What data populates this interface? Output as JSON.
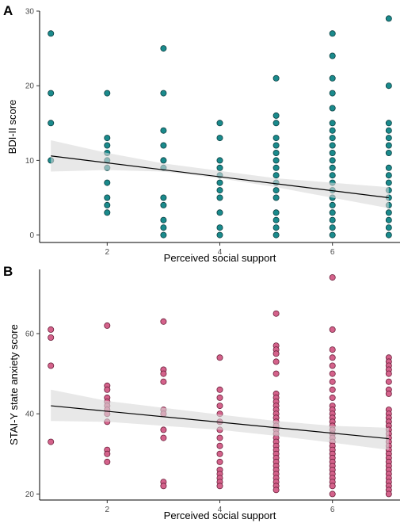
{
  "panels": [
    {
      "letter": "A",
      "chart_data": {
        "type": "scatter",
        "title": "",
        "xlabel": "Perceived social support",
        "ylabel": "BDI-II score",
        "xlim": [
          0.8,
          7.2
        ],
        "ylim": [
          -1,
          30
        ],
        "x_ticks": [
          2,
          4,
          6
        ],
        "y_ticks": [
          0,
          10,
          20,
          30
        ],
        "grid": false,
        "point_color": "#1a8a8c",
        "point_stroke": "#0b3f40",
        "band_color": "#d9d9d9",
        "line_color": "#000000",
        "points": [
          [
            1,
            27
          ],
          [
            1,
            19
          ],
          [
            1,
            15
          ],
          [
            1,
            10
          ],
          [
            2,
            19
          ],
          [
            2,
            13
          ],
          [
            2,
            12
          ],
          [
            2,
            11
          ],
          [
            2,
            10
          ],
          [
            2,
            9
          ],
          [
            2,
            7
          ],
          [
            2,
            5
          ],
          [
            2,
            4
          ],
          [
            2,
            3
          ],
          [
            3,
            25
          ],
          [
            3,
            19
          ],
          [
            3,
            14
          ],
          [
            3,
            12
          ],
          [
            3,
            10
          ],
          [
            3,
            9
          ],
          [
            3,
            5
          ],
          [
            3,
            4
          ],
          [
            3,
            2
          ],
          [
            3,
            1
          ],
          [
            3,
            0
          ],
          [
            4,
            15
          ],
          [
            4,
            13
          ],
          [
            4,
            10
          ],
          [
            4,
            9
          ],
          [
            4,
            8
          ],
          [
            4,
            7
          ],
          [
            4,
            6
          ],
          [
            4,
            5
          ],
          [
            4,
            3
          ],
          [
            4,
            1
          ],
          [
            4,
            0
          ],
          [
            5,
            21
          ],
          [
            5,
            16
          ],
          [
            5,
            15
          ],
          [
            5,
            13
          ],
          [
            5,
            12
          ],
          [
            5,
            11
          ],
          [
            5,
            10
          ],
          [
            5,
            9
          ],
          [
            5,
            8
          ],
          [
            5,
            7
          ],
          [
            5,
            6
          ],
          [
            5,
            5
          ],
          [
            5,
            3
          ],
          [
            5,
            2
          ],
          [
            5,
            1
          ],
          [
            5,
            0
          ],
          [
            6,
            27
          ],
          [
            6,
            24
          ],
          [
            6,
            21
          ],
          [
            6,
            19
          ],
          [
            6,
            17
          ],
          [
            6,
            15
          ],
          [
            6,
            14
          ],
          [
            6,
            13
          ],
          [
            6,
            12
          ],
          [
            6,
            11
          ],
          [
            6,
            10
          ],
          [
            6,
            9
          ],
          [
            6,
            8
          ],
          [
            6,
            7
          ],
          [
            6,
            6
          ],
          [
            6,
            5
          ],
          [
            6,
            4
          ],
          [
            6,
            3
          ],
          [
            6,
            2
          ],
          [
            6,
            1
          ],
          [
            6,
            0
          ],
          [
            7,
            29
          ],
          [
            7,
            20
          ],
          [
            7,
            15
          ],
          [
            7,
            14
          ],
          [
            7,
            13
          ],
          [
            7,
            12
          ],
          [
            7,
            11
          ],
          [
            7,
            9
          ],
          [
            7,
            8
          ],
          [
            7,
            7
          ],
          [
            7,
            6
          ],
          [
            7,
            5
          ],
          [
            7,
            4
          ],
          [
            7,
            3
          ],
          [
            7,
            2
          ],
          [
            7,
            1
          ],
          [
            7,
            0
          ]
        ],
        "fit": {
          "x": [
            1,
            7
          ],
          "y": [
            10.6,
            5.0
          ]
        },
        "ci": {
          "x": [
            1,
            2,
            3,
            4,
            5,
            6,
            7
          ],
          "lower": [
            8.5,
            8.7,
            8.5,
            7.6,
            6.4,
            5.0,
            3.6
          ],
          "upper": [
            12.7,
            11.0,
            9.6,
            8.6,
            7.6,
            7.0,
            6.4
          ]
        }
      }
    },
    {
      "letter": "B",
      "chart_data": {
        "type": "scatter",
        "title": "",
        "xlabel": "Perceived social support",
        "ylabel": "STAI-Y state anxiety score",
        "xlim": [
          0.8,
          7.2
        ],
        "ylim": [
          18.5,
          76
        ],
        "x_ticks": [
          2,
          4,
          6
        ],
        "y_ticks": [
          20,
          40,
          60
        ],
        "grid": false,
        "point_color": "#d4628b",
        "point_stroke": "#6b1f3a",
        "band_color": "#d9d9d9",
        "line_color": "#000000",
        "points": [
          [
            1,
            61
          ],
          [
            1,
            59
          ],
          [
            1,
            52
          ],
          [
            1,
            33
          ],
          [
            2,
            62
          ],
          [
            2,
            47
          ],
          [
            2,
            46
          ],
          [
            2,
            44
          ],
          [
            2,
            43
          ],
          [
            2,
            42
          ],
          [
            2,
            41
          ],
          [
            2,
            40
          ],
          [
            2,
            38
          ],
          [
            2,
            31
          ],
          [
            2,
            30
          ],
          [
            2,
            28
          ],
          [
            3,
            63
          ],
          [
            3,
            51
          ],
          [
            3,
            50
          ],
          [
            3,
            48
          ],
          [
            3,
            41
          ],
          [
            3,
            40
          ],
          [
            3,
            36
          ],
          [
            3,
            34
          ],
          [
            3,
            23
          ],
          [
            3,
            22
          ],
          [
            4,
            54
          ],
          [
            4,
            46
          ],
          [
            4,
            44
          ],
          [
            4,
            42
          ],
          [
            4,
            40
          ],
          [
            4,
            38
          ],
          [
            4,
            36
          ],
          [
            4,
            34
          ],
          [
            4,
            32
          ],
          [
            4,
            30
          ],
          [
            4,
            28
          ],
          [
            4,
            26
          ],
          [
            4,
            25
          ],
          [
            4,
            24
          ],
          [
            4,
            23
          ],
          [
            4,
            22
          ],
          [
            5,
            65
          ],
          [
            5,
            57
          ],
          [
            5,
            56
          ],
          [
            5,
            55
          ],
          [
            5,
            53
          ],
          [
            5,
            50
          ],
          [
            5,
            45
          ],
          [
            5,
            44
          ],
          [
            5,
            43
          ],
          [
            5,
            42
          ],
          [
            5,
            41
          ],
          [
            5,
            40
          ],
          [
            5,
            39
          ],
          [
            5,
            38
          ],
          [
            5,
            37
          ],
          [
            5,
            36
          ],
          [
            5,
            35
          ],
          [
            5,
            34
          ],
          [
            5,
            33
          ],
          [
            5,
            32
          ],
          [
            5,
            31
          ],
          [
            5,
            30
          ],
          [
            5,
            29
          ],
          [
            5,
            28
          ],
          [
            5,
            27
          ],
          [
            5,
            26
          ],
          [
            5,
            25
          ],
          [
            5,
            24
          ],
          [
            5,
            23
          ],
          [
            5,
            22
          ],
          [
            5,
            21
          ],
          [
            6,
            74
          ],
          [
            6,
            61
          ],
          [
            6,
            56
          ],
          [
            6,
            54
          ],
          [
            6,
            52
          ],
          [
            6,
            50
          ],
          [
            6,
            48
          ],
          [
            6,
            46
          ],
          [
            6,
            44
          ],
          [
            6,
            42
          ],
          [
            6,
            41
          ],
          [
            6,
            40
          ],
          [
            6,
            39
          ],
          [
            6,
            38
          ],
          [
            6,
            37
          ],
          [
            6,
            36
          ],
          [
            6,
            35
          ],
          [
            6,
            34
          ],
          [
            6,
            33
          ],
          [
            6,
            32
          ],
          [
            6,
            31
          ],
          [
            6,
            30
          ],
          [
            6,
            29
          ],
          [
            6,
            28
          ],
          [
            6,
            27
          ],
          [
            6,
            26
          ],
          [
            6,
            25
          ],
          [
            6,
            24
          ],
          [
            6,
            23
          ],
          [
            6,
            22
          ],
          [
            6,
            20
          ],
          [
            7,
            54
          ],
          [
            7,
            53
          ],
          [
            7,
            52
          ],
          [
            7,
            51
          ],
          [
            7,
            50
          ],
          [
            7,
            48
          ],
          [
            7,
            46
          ],
          [
            7,
            45
          ],
          [
            7,
            41
          ],
          [
            7,
            40
          ],
          [
            7,
            39
          ],
          [
            7,
            38
          ],
          [
            7,
            37
          ],
          [
            7,
            36
          ],
          [
            7,
            35
          ],
          [
            7,
            34
          ],
          [
            7,
            33
          ],
          [
            7,
            32
          ],
          [
            7,
            31
          ],
          [
            7,
            30
          ],
          [
            7,
            29
          ],
          [
            7,
            28
          ],
          [
            7,
            27
          ],
          [
            7,
            26
          ],
          [
            7,
            25
          ],
          [
            7,
            24
          ],
          [
            7,
            23
          ],
          [
            7,
            22
          ],
          [
            7,
            21
          ],
          [
            7,
            20
          ]
        ],
        "fit": {
          "x": [
            1,
            7
          ],
          "y": [
            42.0,
            33.8
          ]
        },
        "ci": {
          "x": [
            1,
            2,
            3,
            4,
            5,
            6,
            7
          ],
          "lower": [
            38.2,
            38.0,
            37.0,
            36.0,
            34.5,
            32.8,
            31.0
          ],
          "upper": [
            46.0,
            43.2,
            41.5,
            39.8,
            38.2,
            37.0,
            36.5
          ]
        }
      }
    }
  ]
}
